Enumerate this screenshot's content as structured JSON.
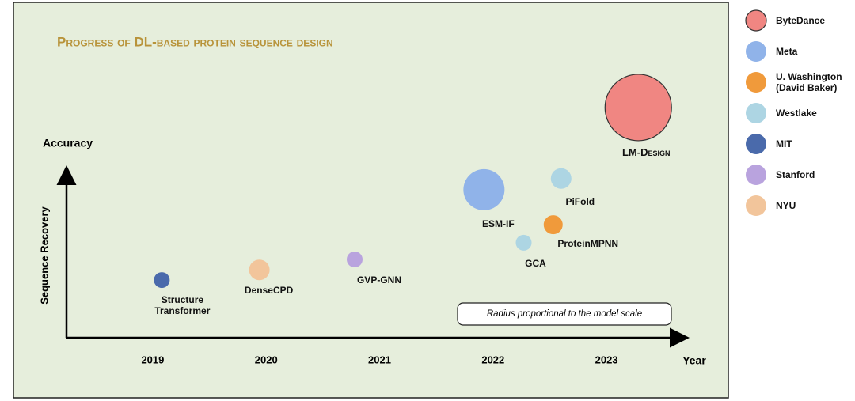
{
  "chart_data": {
    "type": "bubble",
    "title": "Progress of DL-based protein sequence design",
    "y_label_top": "Accuracy",
    "y_label": "Sequence Recovery",
    "x_label": "Year",
    "annotation": "Radius proportional to the model scale",
    "xlim": [
      2018.24,
      2023.69
    ],
    "xticks": [
      2019,
      2020,
      2021,
      2022,
      2023
    ],
    "ylim": [
      0,
      100
    ],
    "series": [
      {
        "name": "ByteDance",
        "color": "#f08682",
        "x": [
          2023.28
        ],
        "values": [
          88.2
        ],
        "sizes": [
          42
        ],
        "labels": [
          "LM-Design"
        ]
      },
      {
        "name": "Meta",
        "color": "#90b3e9",
        "x": [
          2021.92
        ],
        "values": [
          56.7
        ],
        "sizes": [
          26
        ],
        "labels": [
          "ESM-IF"
        ]
      },
      {
        "name": "U. Washington\n(David Baker)",
        "color": "#f09a3b",
        "x": [
          2022.53
        ],
        "values": [
          43.3
        ],
        "sizes": [
          12
        ],
        "labels": [
          "ProteinMPNN"
        ]
      },
      {
        "name": "Westlake",
        "color": "#add5e3",
        "x": [
          2022.27,
          2022.6
        ],
        "values": [
          36.4,
          61
        ],
        "sizes": [
          10,
          13
        ],
        "labels": [
          "GCA",
          "PiFold"
        ]
      },
      {
        "name": "MIT",
        "color": "#4a6aab",
        "x": [
          2019.08
        ],
        "values": [
          22.1
        ],
        "sizes": [
          10
        ],
        "labels": [
          "Structure\nTransformer"
        ]
      },
      {
        "name": "Stanford",
        "color": "#b9a3de",
        "x": [
          2020.78
        ],
        "values": [
          30
        ],
        "sizes": [
          10
        ],
        "labels": [
          "GVP-GNN"
        ]
      },
      {
        "name": "NYU",
        "color": "#f2c59b",
        "x": [
          2019.94
        ],
        "values": [
          26
        ],
        "sizes": [
          13
        ],
        "labels": [
          "DenseCPD"
        ]
      }
    ]
  }
}
